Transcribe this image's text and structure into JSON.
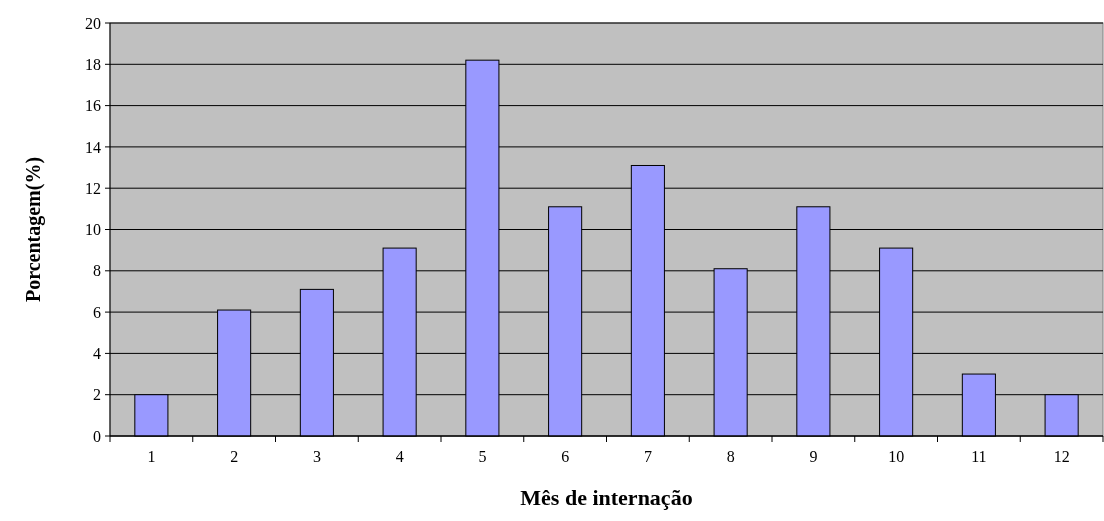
{
  "chart_data": {
    "type": "bar",
    "xlabel": "Mês de internação",
    "ylabel": "Porcentagem(%)",
    "categories": [
      "1",
      "2",
      "3",
      "4",
      "5",
      "6",
      "7",
      "8",
      "9",
      "10",
      "11",
      "12"
    ],
    "values": [
      2,
      6.1,
      7.1,
      9.1,
      18.2,
      11.1,
      13.1,
      8.1,
      11.1,
      9.1,
      3,
      2
    ],
    "color": "#9999ff",
    "ylim": [
      0,
      20
    ],
    "yticks": [
      0,
      2,
      4,
      6,
      8,
      10,
      12,
      14,
      16,
      18,
      20
    ],
    "grid": "y"
  }
}
